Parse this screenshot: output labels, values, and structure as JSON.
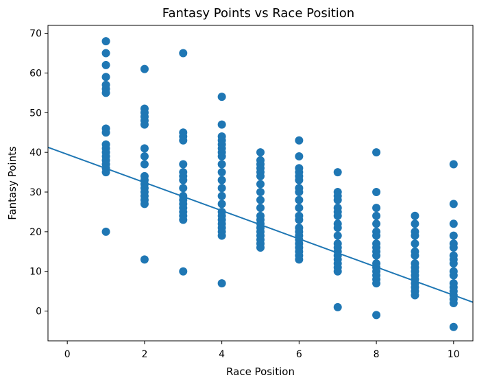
{
  "chart_data": {
    "type": "scatter",
    "title": "Fantasy Points vs Race Position",
    "xlabel": "Race Position",
    "ylabel": "Fantasy Points",
    "xlim": [
      -0.5,
      10.5
    ],
    "ylim": [
      -7.5,
      72
    ],
    "xticks": [
      0,
      2,
      4,
      6,
      8,
      10
    ],
    "yticks": [
      0,
      10,
      20,
      30,
      40,
      50,
      60,
      70
    ],
    "grid": false,
    "colors": {
      "points": "#1f77b4",
      "trend": "#1f77b4"
    },
    "trend_line": {
      "intercept": 39.5,
      "slope": -3.55
    },
    "points": [
      [
        1,
        68
      ],
      [
        1,
        65
      ],
      [
        1,
        62
      ],
      [
        1,
        59
      ],
      [
        1,
        57
      ],
      [
        1,
        56
      ],
      [
        1,
        55
      ],
      [
        1,
        46
      ],
      [
        1,
        45
      ],
      [
        1,
        42
      ],
      [
        1,
        41
      ],
      [
        1,
        40
      ],
      [
        1,
        39
      ],
      [
        1,
        38
      ],
      [
        1,
        37
      ],
      [
        1,
        36
      ],
      [
        1,
        35
      ],
      [
        1,
        20
      ],
      [
        2,
        61
      ],
      [
        2,
        51
      ],
      [
        2,
        50
      ],
      [
        2,
        49
      ],
      [
        2,
        48
      ],
      [
        2,
        47
      ],
      [
        2,
        41
      ],
      [
        2,
        39
      ],
      [
        2,
        37
      ],
      [
        2,
        34
      ],
      [
        2,
        33
      ],
      [
        2,
        32
      ],
      [
        2,
        31
      ],
      [
        2,
        30
      ],
      [
        2,
        29
      ],
      [
        2,
        28
      ],
      [
        2,
        27
      ],
      [
        2,
        13
      ],
      [
        3,
        65
      ],
      [
        3,
        45
      ],
      [
        3,
        44
      ],
      [
        3,
        43
      ],
      [
        3,
        37
      ],
      [
        3,
        35
      ],
      [
        3,
        34
      ],
      [
        3,
        33
      ],
      [
        3,
        31
      ],
      [
        3,
        29
      ],
      [
        3,
        28
      ],
      [
        3,
        27
      ],
      [
        3,
        26
      ],
      [
        3,
        25
      ],
      [
        3,
        24
      ],
      [
        3,
        23
      ],
      [
        3,
        10
      ],
      [
        4,
        54
      ],
      [
        4,
        47
      ],
      [
        4,
        44
      ],
      [
        4,
        43
      ],
      [
        4,
        42
      ],
      [
        4,
        41
      ],
      [
        4,
        40
      ],
      [
        4,
        39
      ],
      [
        4,
        37
      ],
      [
        4,
        35
      ],
      [
        4,
        33
      ],
      [
        4,
        31
      ],
      [
        4,
        29
      ],
      [
        4,
        27
      ],
      [
        4,
        25
      ],
      [
        4,
        24
      ],
      [
        4,
        23
      ],
      [
        4,
        22
      ],
      [
        4,
        21
      ],
      [
        4,
        20
      ],
      [
        4,
        19
      ],
      [
        4,
        7
      ],
      [
        5,
        40
      ],
      [
        5,
        38
      ],
      [
        5,
        37
      ],
      [
        5,
        36
      ],
      [
        5,
        35
      ],
      [
        5,
        34
      ],
      [
        5,
        32
      ],
      [
        5,
        30
      ],
      [
        5,
        28
      ],
      [
        5,
        26
      ],
      [
        5,
        24
      ],
      [
        5,
        23
      ],
      [
        5,
        22
      ],
      [
        5,
        21
      ],
      [
        5,
        20
      ],
      [
        5,
        19
      ],
      [
        5,
        18
      ],
      [
        5,
        17
      ],
      [
        5,
        16
      ],
      [
        6,
        43
      ],
      [
        6,
        39
      ],
      [
        6,
        36
      ],
      [
        6,
        35
      ],
      [
        6,
        34
      ],
      [
        6,
        33
      ],
      [
        6,
        31
      ],
      [
        6,
        30
      ],
      [
        6,
        28
      ],
      [
        6,
        26
      ],
      [
        6,
        24
      ],
      [
        6,
        23
      ],
      [
        6,
        21
      ],
      [
        6,
        20
      ],
      [
        6,
        19
      ],
      [
        6,
        18
      ],
      [
        6,
        17
      ],
      [
        6,
        16
      ],
      [
        6,
        15
      ],
      [
        6,
        14
      ],
      [
        6,
        13
      ],
      [
        7,
        35
      ],
      [
        7,
        30
      ],
      [
        7,
        29
      ],
      [
        7,
        28
      ],
      [
        7,
        26
      ],
      [
        7,
        25
      ],
      [
        7,
        24
      ],
      [
        7,
        22
      ],
      [
        7,
        21
      ],
      [
        7,
        19
      ],
      [
        7,
        17
      ],
      [
        7,
        16
      ],
      [
        7,
        15
      ],
      [
        7,
        14
      ],
      [
        7,
        13
      ],
      [
        7,
        12
      ],
      [
        7,
        11
      ],
      [
        7,
        10
      ],
      [
        7,
        1
      ],
      [
        8,
        40
      ],
      [
        8,
        30
      ],
      [
        8,
        26
      ],
      [
        8,
        24
      ],
      [
        8,
        22
      ],
      [
        8,
        20
      ],
      [
        8,
        19
      ],
      [
        8,
        17
      ],
      [
        8,
        16
      ],
      [
        8,
        15
      ],
      [
        8,
        14
      ],
      [
        8,
        12
      ],
      [
        8,
        11
      ],
      [
        8,
        10
      ],
      [
        8,
        9
      ],
      [
        8,
        8
      ],
      [
        8,
        7
      ],
      [
        8,
        -1
      ],
      [
        9,
        24
      ],
      [
        9,
        22
      ],
      [
        9,
        20
      ],
      [
        9,
        19
      ],
      [
        9,
        17
      ],
      [
        9,
        15
      ],
      [
        9,
        14
      ],
      [
        9,
        12
      ],
      [
        9,
        11
      ],
      [
        9,
        10
      ],
      [
        9,
        9
      ],
      [
        9,
        8
      ],
      [
        9,
        7
      ],
      [
        9,
        6
      ],
      [
        9,
        5
      ],
      [
        9,
        4
      ],
      [
        10,
        37
      ],
      [
        10,
        27
      ],
      [
        10,
        22
      ],
      [
        10,
        19
      ],
      [
        10,
        17
      ],
      [
        10,
        16
      ],
      [
        10,
        14
      ],
      [
        10,
        13
      ],
      [
        10,
        12
      ],
      [
        10,
        10
      ],
      [
        10,
        9
      ],
      [
        10,
        7
      ],
      [
        10,
        6
      ],
      [
        10,
        5
      ],
      [
        10,
        4
      ],
      [
        10,
        3
      ],
      [
        10,
        2
      ],
      [
        10,
        -4
      ]
    ]
  }
}
